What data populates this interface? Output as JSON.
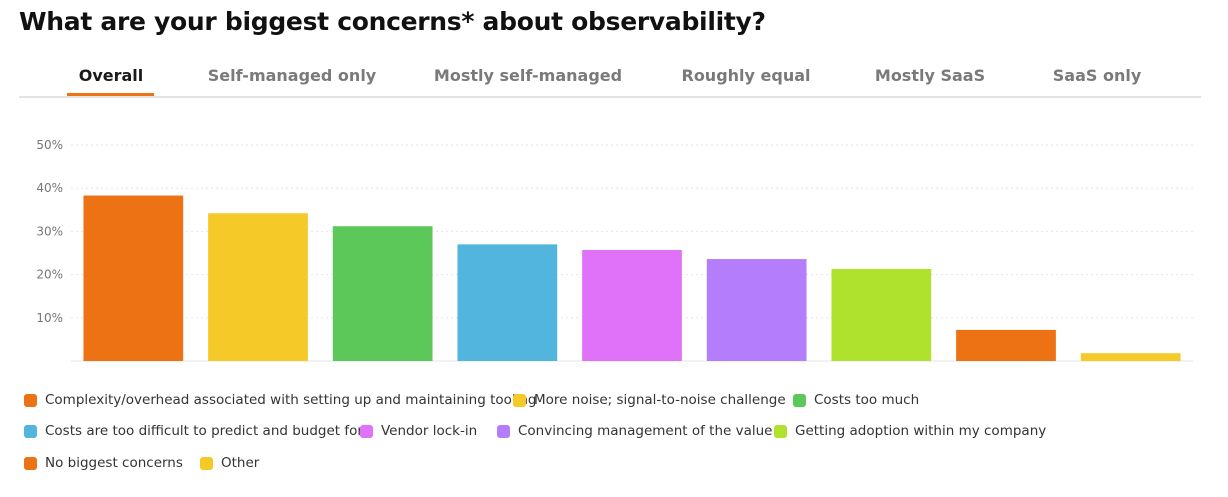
{
  "page": {
    "title": "What are your biggest concerns* about observability?"
  },
  "tabs": [
    {
      "label": "Overall",
      "active": true
    },
    {
      "label": "Self-managed only",
      "active": false
    },
    {
      "label": "Mostly self-managed",
      "active": false
    },
    {
      "label": "Roughly equal",
      "active": false
    },
    {
      "label": "Mostly SaaS",
      "active": false
    },
    {
      "label": "SaaS only",
      "active": false
    }
  ],
  "colors": {
    "accent": "#ec7214",
    "grid": "#e6e6e6",
    "axis_text": "#777777"
  },
  "chart_data": {
    "type": "bar",
    "title": "",
    "xlabel": "",
    "ylabel": "",
    "ylim": [
      0,
      50
    ],
    "yticks": [
      10,
      20,
      30,
      40,
      50
    ],
    "ytick_labels": [
      "10%",
      "20%",
      "30%",
      "40%",
      "50%"
    ],
    "grid": true,
    "categories": [
      "Complexity/overhead associated with setting up and maintaining tooling",
      "More noise; signal-to-noise challenge",
      "Costs too much",
      "Costs are too difficult to predict and budget for",
      "Vendor lock-in",
      "Convincing management of the value",
      "Getting adoption within my company",
      "No biggest concerns",
      "Other"
    ],
    "values": [
      38.3,
      34.2,
      31.2,
      27.0,
      25.7,
      23.6,
      21.3,
      7.2,
      1.8
    ],
    "colors": [
      "#ec7214",
      "#f4c928",
      "#5cc85a",
      "#52b5dd",
      "#df72f8",
      "#b37dfc",
      "#aee22d",
      "#ec7214",
      "#f4c928"
    ],
    "legend_position": "bottom"
  }
}
